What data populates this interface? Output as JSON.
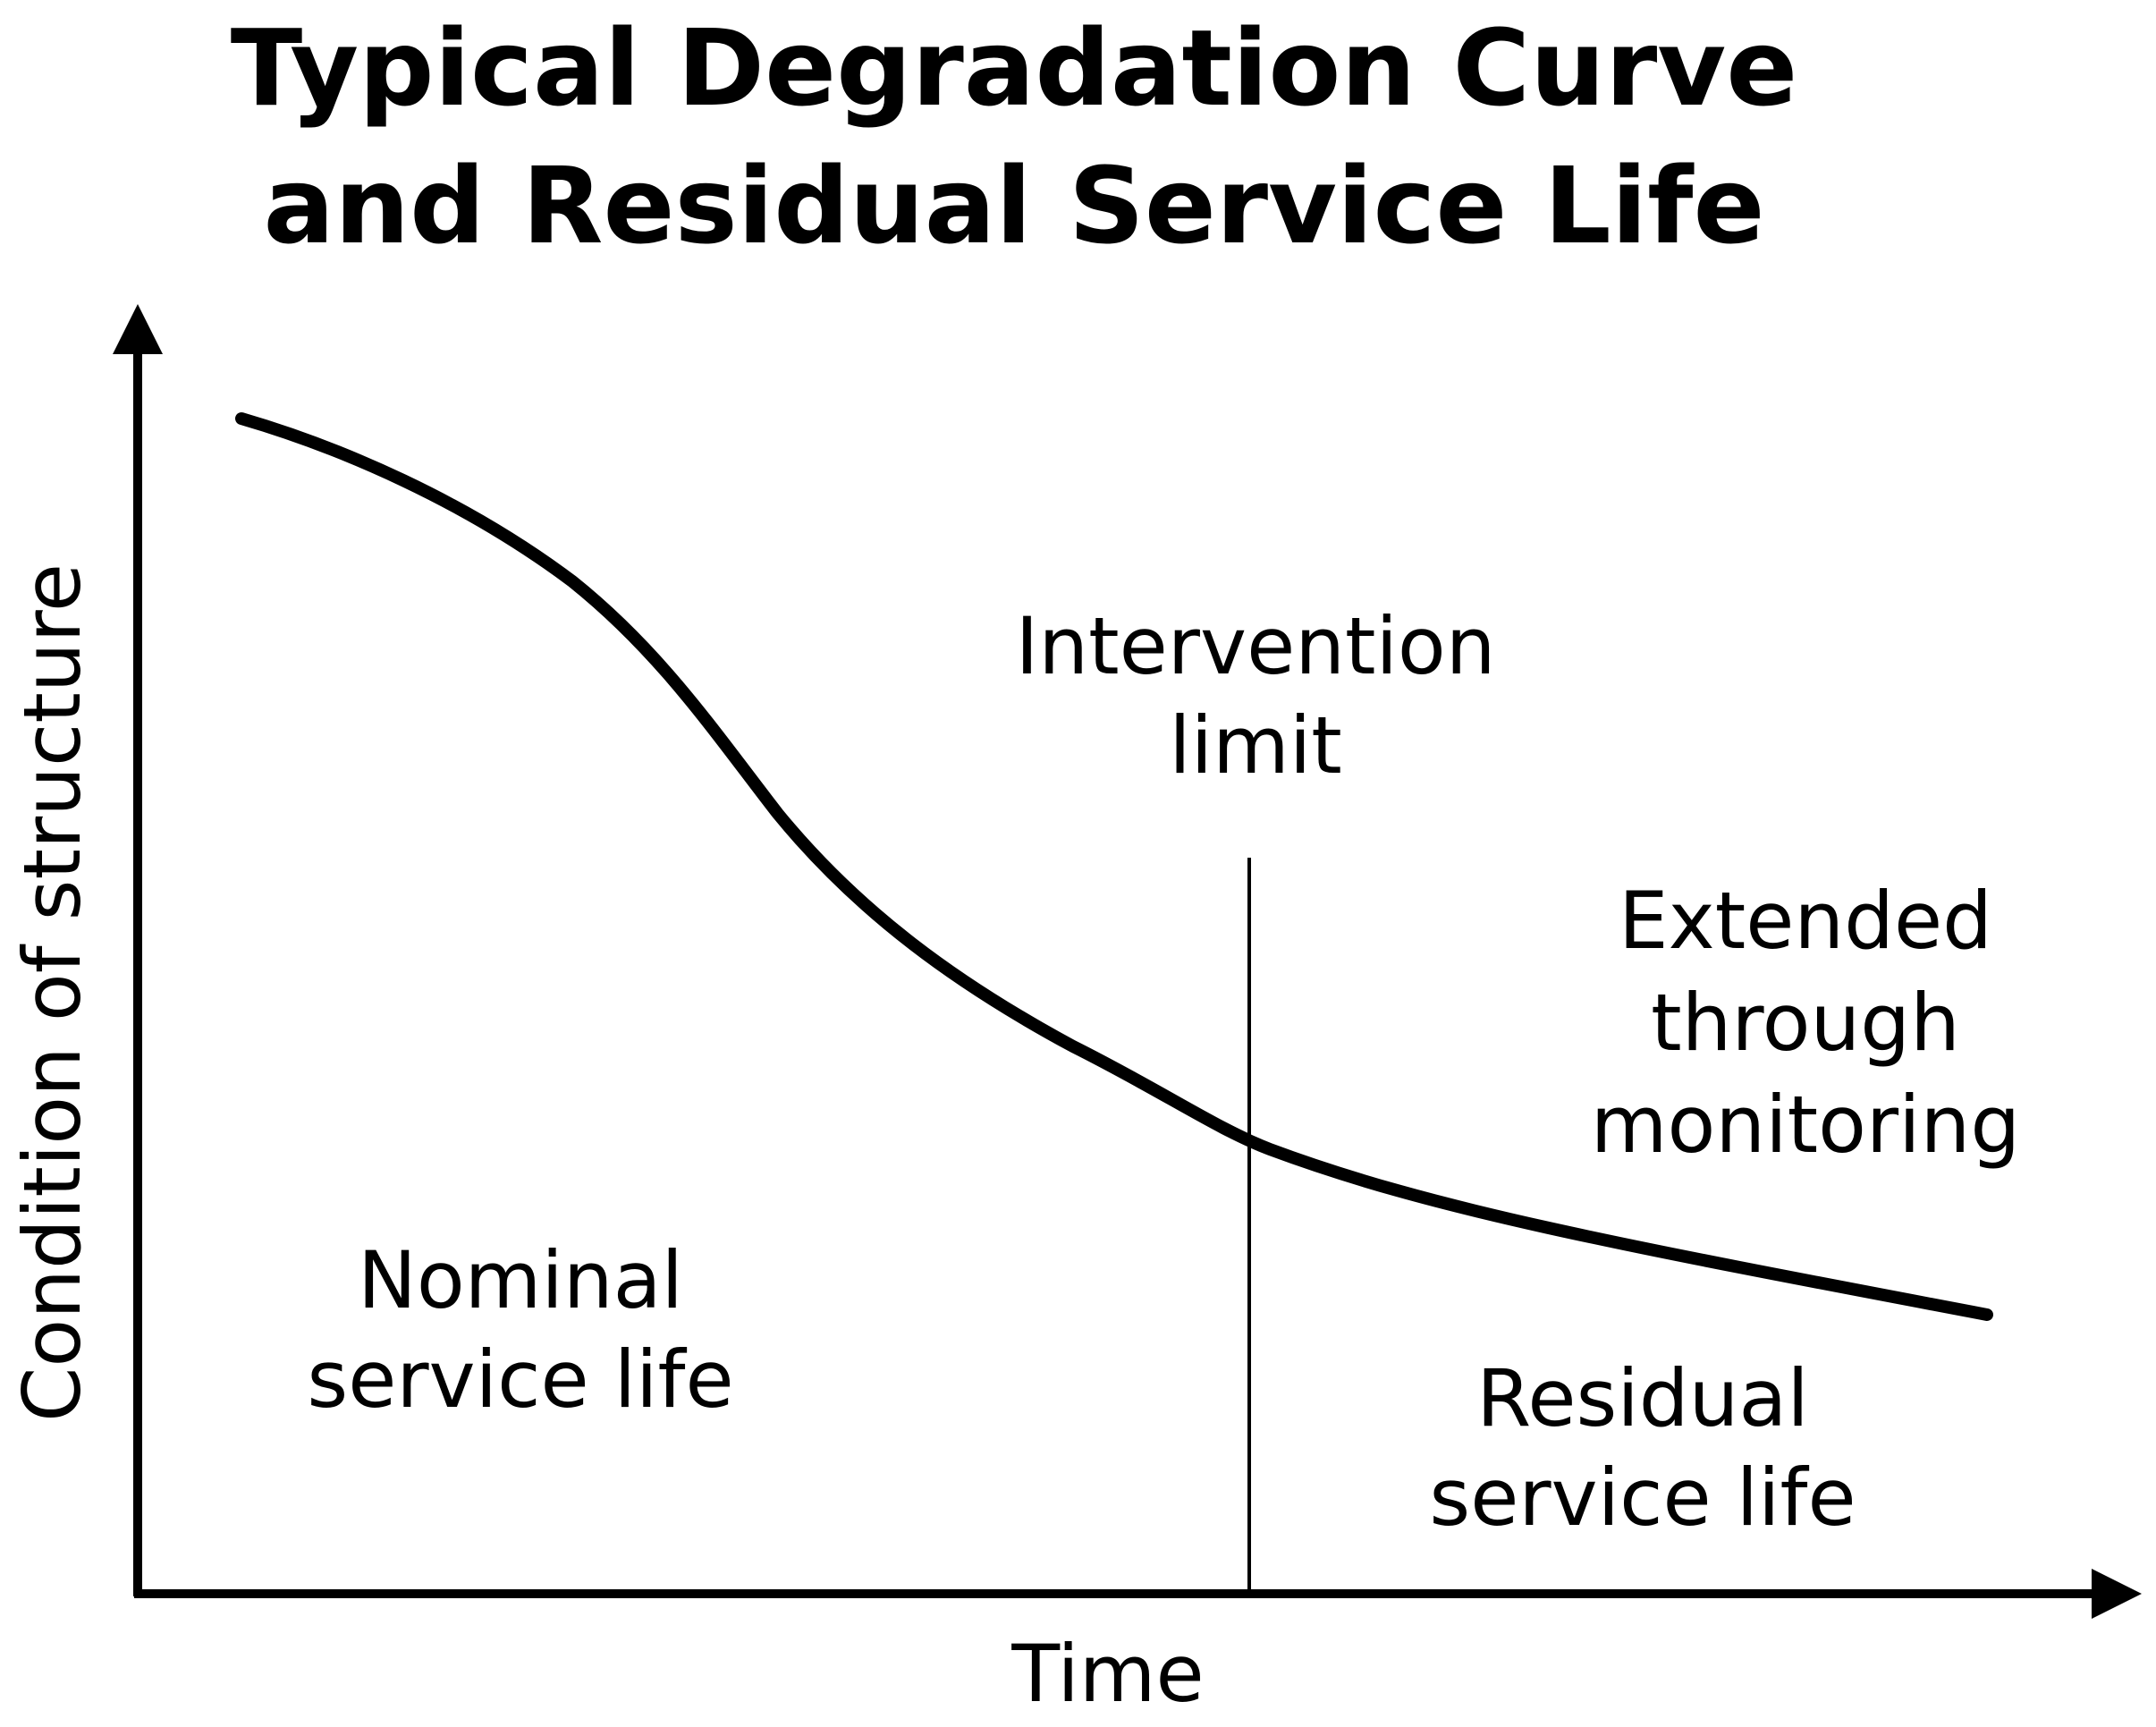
{
  "title": {
    "lines": [
      "Typical Degradation Curve",
      "and Residual Service Life"
    ]
  },
  "axes": {
    "y_label": "Condition of structure",
    "x_label": "Time"
  },
  "annotations": {
    "intervention_limit": [
      "Intervention",
      "limit"
    ],
    "extended": [
      "Extended",
      "through",
      "monitoring"
    ],
    "nominal": [
      "Nominal",
      "service life"
    ],
    "residual": [
      "Residual",
      "service life"
    ]
  }
}
